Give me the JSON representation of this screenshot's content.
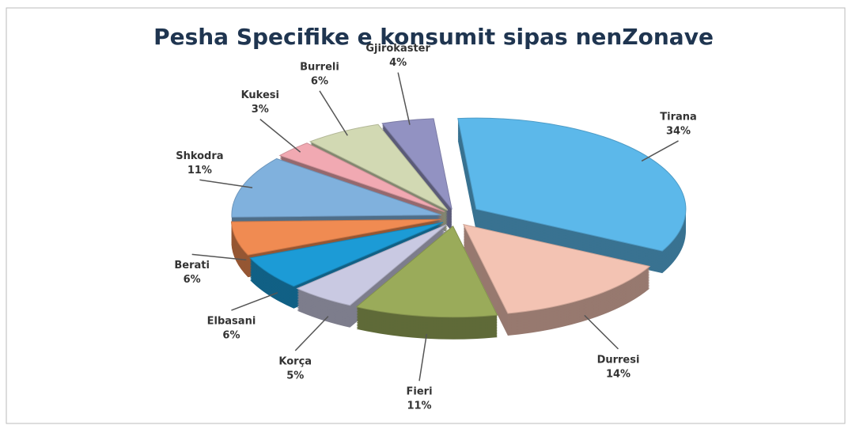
{
  "chart_data": {
    "type": "pie",
    "title": "Pesha Specifike e konsumit  sipas nenZonave",
    "categories": [
      "Tirana",
      "Durresi",
      "Fieri",
      "Korça",
      "Elbasani",
      "Berati",
      "Shkodra",
      "Kukesi",
      "Burreli",
      "Gjirokaster"
    ],
    "values": [
      34,
      14,
      11,
      5,
      6,
      6,
      11,
      3,
      6,
      4
    ],
    "value_labels": [
      "34%",
      "14%",
      "11%",
      "5%",
      "6%",
      "6%",
      "11%",
      "3%",
      "6%",
      "4%"
    ],
    "colors": [
      "#5cb8ea",
      "#f3c3b3",
      "#9aab5a",
      "#c9c9e2",
      "#1c9bd6",
      "#f08b52",
      "#80b1dd",
      "#f1a9b2",
      "#d2d9b3",
      "#9292c2"
    ]
  }
}
